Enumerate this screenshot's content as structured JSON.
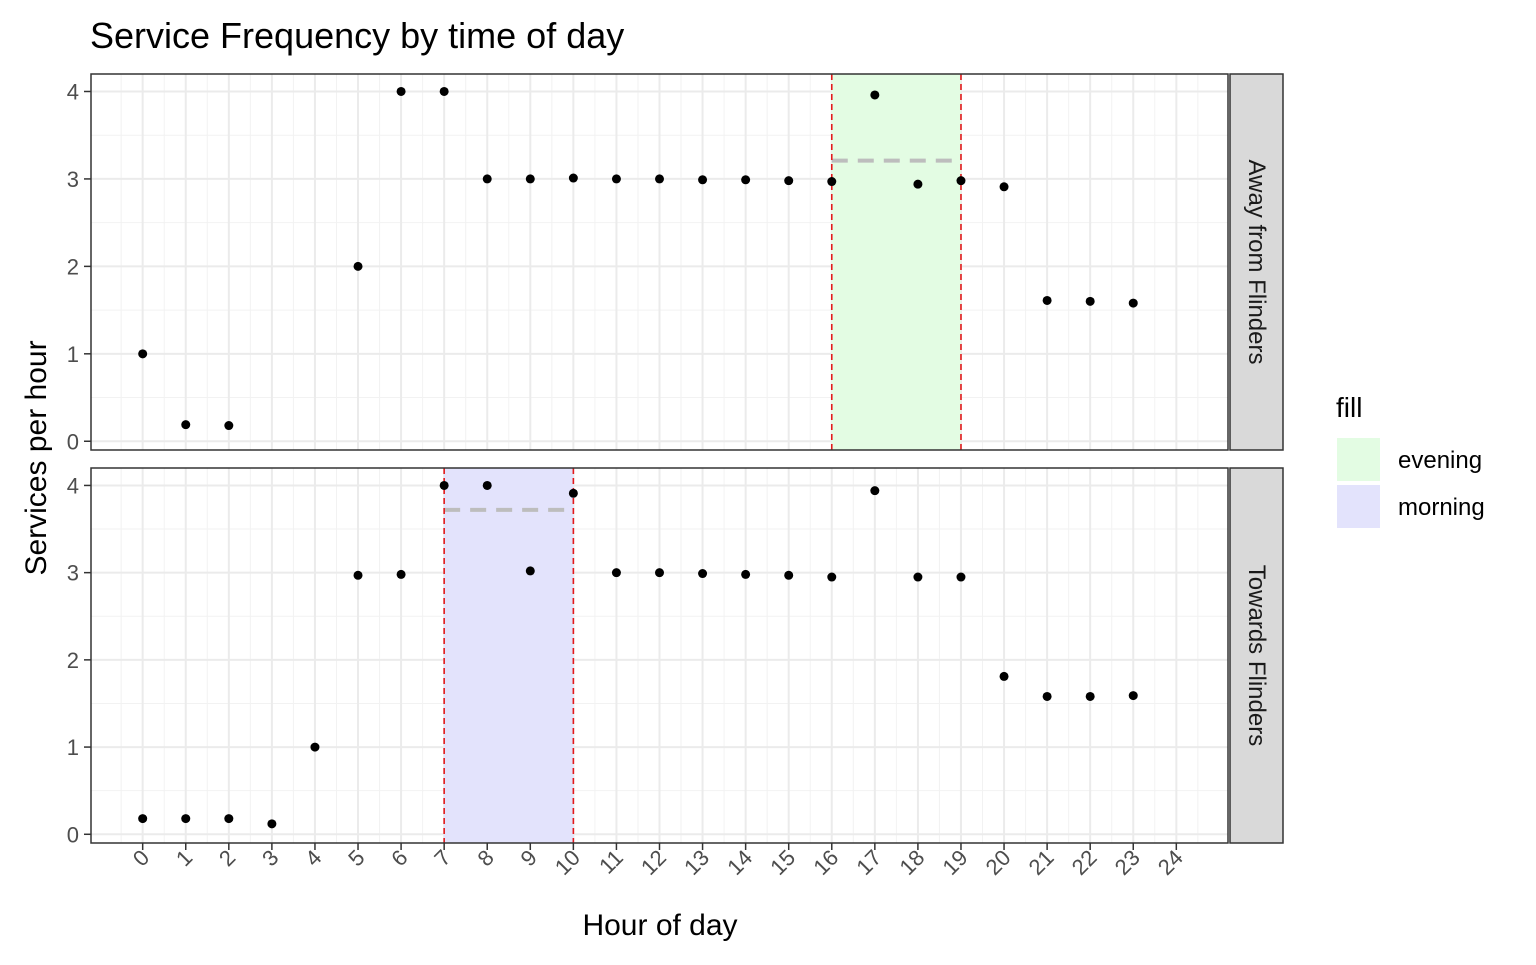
{
  "chart_data": {
    "type": "scatter",
    "title": "Service Frequency by time of day",
    "xlabel": "Hour of day",
    "ylabel": "Services per hour",
    "x_ticks": [
      "0",
      "1",
      "2",
      "3",
      "4",
      "5",
      "6",
      "7",
      "8",
      "9",
      "10",
      "11",
      "12",
      "13",
      "14",
      "15",
      "16",
      "17",
      "18",
      "19",
      "20",
      "21",
      "22",
      "23",
      "24"
    ],
    "y_ticks": [
      "0",
      "1",
      "2",
      "3",
      "4"
    ],
    "xlim": [
      -1.2,
      25.2
    ],
    "ylim": [
      -0.1,
      4.2
    ],
    "grid": true,
    "legend": {
      "title": "fill",
      "position": "right",
      "items": [
        {
          "label": "evening",
          "color": "#e3fce3"
        },
        {
          "label": "morning",
          "color": "#e3e3fc"
        }
      ]
    },
    "colors": {
      "points": "#000000",
      "window_lines": "#e31a1c",
      "window_mean": "#bdbdbd",
      "strip_background": "#d9d9d9"
    },
    "panels": [
      {
        "strip_label": "Away from Flinders",
        "highlight": {
          "fill": "evening",
          "x_start": 16,
          "x_end": 19,
          "mean_y": 3.21
        },
        "points": [
          {
            "x": 0,
            "y": 1.0
          },
          {
            "x": 1,
            "y": 0.19
          },
          {
            "x": 2,
            "y": 0.18
          },
          {
            "x": 5,
            "y": 2.0
          },
          {
            "x": 6,
            "y": 4.0
          },
          {
            "x": 7,
            "y": 4.0
          },
          {
            "x": 8,
            "y": 3.0
          },
          {
            "x": 9,
            "y": 3.0
          },
          {
            "x": 10,
            "y": 3.01
          },
          {
            "x": 11,
            "y": 3.0
          },
          {
            "x": 12,
            "y": 3.0
          },
          {
            "x": 13,
            "y": 2.99
          },
          {
            "x": 14,
            "y": 2.99
          },
          {
            "x": 15,
            "y": 2.98
          },
          {
            "x": 16,
            "y": 2.97
          },
          {
            "x": 17,
            "y": 3.96
          },
          {
            "x": 18,
            "y": 2.94
          },
          {
            "x": 19,
            "y": 2.98
          },
          {
            "x": 20,
            "y": 2.91
          },
          {
            "x": 21,
            "y": 1.61
          },
          {
            "x": 22,
            "y": 1.6
          },
          {
            "x": 23,
            "y": 1.58
          }
        ]
      },
      {
        "strip_label": "Towards Flinders",
        "highlight": {
          "fill": "morning",
          "x_start": 7,
          "x_end": 10,
          "mean_y": 3.72
        },
        "points": [
          {
            "x": 0,
            "y": 0.18
          },
          {
            "x": 1,
            "y": 0.18
          },
          {
            "x": 2,
            "y": 0.18
          },
          {
            "x": 3,
            "y": 0.12
          },
          {
            "x": 4,
            "y": 1.0
          },
          {
            "x": 5,
            "y": 2.97
          },
          {
            "x": 6,
            "y": 2.98
          },
          {
            "x": 7,
            "y": 4.0
          },
          {
            "x": 8,
            "y": 4.0
          },
          {
            "x": 9,
            "y": 3.02
          },
          {
            "x": 10,
            "y": 3.91
          },
          {
            "x": 11,
            "y": 3.0
          },
          {
            "x": 12,
            "y": 3.0
          },
          {
            "x": 13,
            "y": 2.99
          },
          {
            "x": 14,
            "y": 2.98
          },
          {
            "x": 15,
            "y": 2.97
          },
          {
            "x": 16,
            "y": 2.95
          },
          {
            "x": 17,
            "y": 3.94
          },
          {
            "x": 18,
            "y": 2.95
          },
          {
            "x": 19,
            "y": 2.95
          },
          {
            "x": 20,
            "y": 1.81
          },
          {
            "x": 21,
            "y": 1.58
          },
          {
            "x": 22,
            "y": 1.58
          },
          {
            "x": 23,
            "y": 1.59
          }
        ]
      }
    ]
  }
}
